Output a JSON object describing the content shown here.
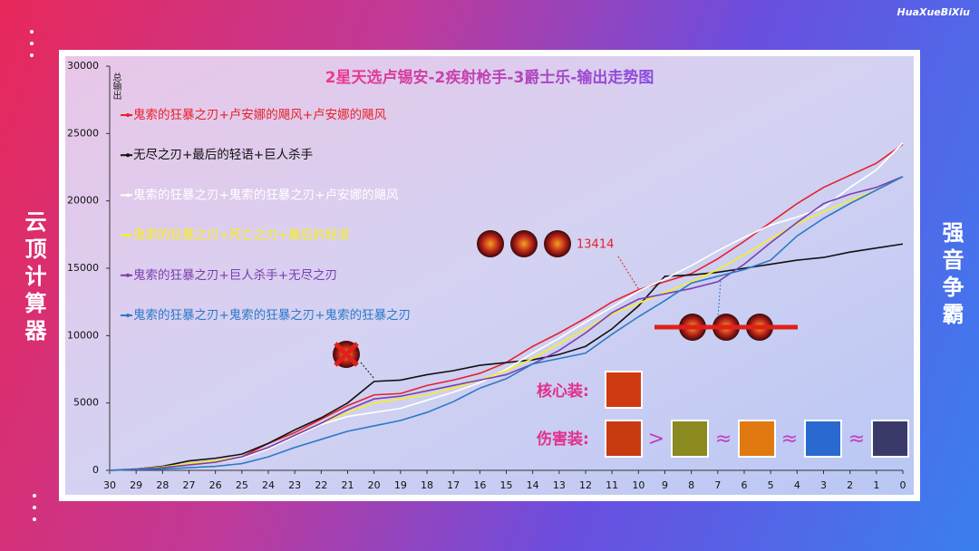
{
  "brand": "HuaXueBiXiu",
  "side_left": "云顶计算器",
  "side_right": "强音争霸",
  "chart_data": {
    "type": "line",
    "title": "2星天选卢锡安-2疾射枪手-3爵士乐-输出走势图",
    "y_label": "总输出",
    "x": [
      30,
      29,
      28,
      27,
      26,
      25,
      24,
      23,
      22,
      21,
      20,
      19,
      18,
      17,
      16,
      15,
      14,
      13,
      12,
      11,
      10,
      9,
      8,
      7,
      6,
      5,
      4,
      3,
      2,
      1,
      0
    ],
    "xlim": [
      30,
      0
    ],
    "xticks": [
      30,
      29,
      28,
      27,
      26,
      25,
      24,
      23,
      22,
      21,
      20,
      19,
      18,
      17,
      16,
      15,
      14,
      13,
      12,
      11,
      10,
      9,
      8,
      7,
      6,
      5,
      4,
      3,
      2,
      1,
      0
    ],
    "ylim": [
      0,
      30000
    ],
    "yticks": [
      0,
      5000,
      10000,
      15000,
      20000,
      25000,
      30000
    ],
    "series": [
      {
        "name": "鬼索的狂暴之刃+卢安娜的飓风+卢安娜的飓风",
        "color": "#e8202a",
        "values": [
          0,
          100,
          200,
          500,
          700,
          1000,
          2000,
          2800,
          3800,
          4800,
          5600,
          5700,
          6300,
          6700,
          7200,
          8000,
          9200,
          10200,
          11300,
          12500,
          13400,
          14000,
          14600,
          15700,
          17000,
          18400,
          19800,
          21000,
          21900,
          22800,
          24200
        ]
      },
      {
        "name": "无尽之刃+最后的轻语+巨人杀手",
        "color": "#111111",
        "values": [
          0,
          100,
          300,
          700,
          900,
          1200,
          2000,
          3000,
          3900,
          5000,
          6600,
          6700,
          7100,
          7400,
          7800,
          8000,
          8200,
          8600,
          9200,
          10500,
          12200,
          14400,
          14500,
          14700,
          15000,
          15300,
          15600,
          15800,
          16200,
          16500,
          16800
        ]
      },
      {
        "name": "鬼索的狂暴之刃+鬼索的狂暴之刃+卢安娜的飓风",
        "color": "#ffffff",
        "values": [
          0,
          100,
          200,
          400,
          600,
          900,
          1600,
          2500,
          3400,
          4000,
          4300,
          4600,
          5200,
          5800,
          6500,
          7500,
          8700,
          9800,
          11000,
          12100,
          13300,
          14200,
          15200,
          16300,
          17300,
          18200,
          18800,
          19500,
          21000,
          22300,
          24300
        ]
      },
      {
        "name": "鬼索的狂暴之刃+死亡之刃+最后的轻语",
        "color": "#f5f021",
        "values": [
          0,
          100,
          250,
          500,
          700,
          1000,
          1700,
          2600,
          3500,
          4300,
          5000,
          5300,
          5600,
          6100,
          6700,
          7400,
          8300,
          9400,
          10500,
          11600,
          12400,
          13200,
          14000,
          14900,
          16000,
          17200,
          18300,
          19200,
          20000,
          20800,
          21800
        ]
      },
      {
        "name": "鬼索的狂暴之刃+巨人杀手+无尽之刃",
        "color": "#7b3fb0",
        "values": [
          0,
          100,
          200,
          400,
          600,
          1000,
          1700,
          2600,
          3500,
          4500,
          5300,
          5500,
          5900,
          6300,
          6700,
          7100,
          7900,
          8900,
          10200,
          11700,
          12700,
          13100,
          13500,
          14000,
          15300,
          16900,
          18400,
          19800,
          20500,
          21000,
          21800
        ]
      },
      {
        "name": "鬼索的狂暴之刃+鬼索的狂暴之刃+鬼索的狂暴之刃",
        "color": "#2a7ac8",
        "values": [
          0,
          50,
          100,
          200,
          300,
          500,
          1000,
          1700,
          2300,
          2900,
          3300,
          3700,
          4300,
          5100,
          6100,
          6800,
          7900,
          8300,
          8700,
          10100,
          11400,
          12600,
          13900,
          14400,
          14900,
          15600,
          17400,
          18700,
          19800,
          20800,
          21800
        ]
      }
    ],
    "annotations": {
      "peak": "13414",
      "core": "核心装:",
      "damage": "伤害装:",
      "symbols": [
        ">",
        "≈",
        "≈",
        "≈"
      ]
    }
  }
}
